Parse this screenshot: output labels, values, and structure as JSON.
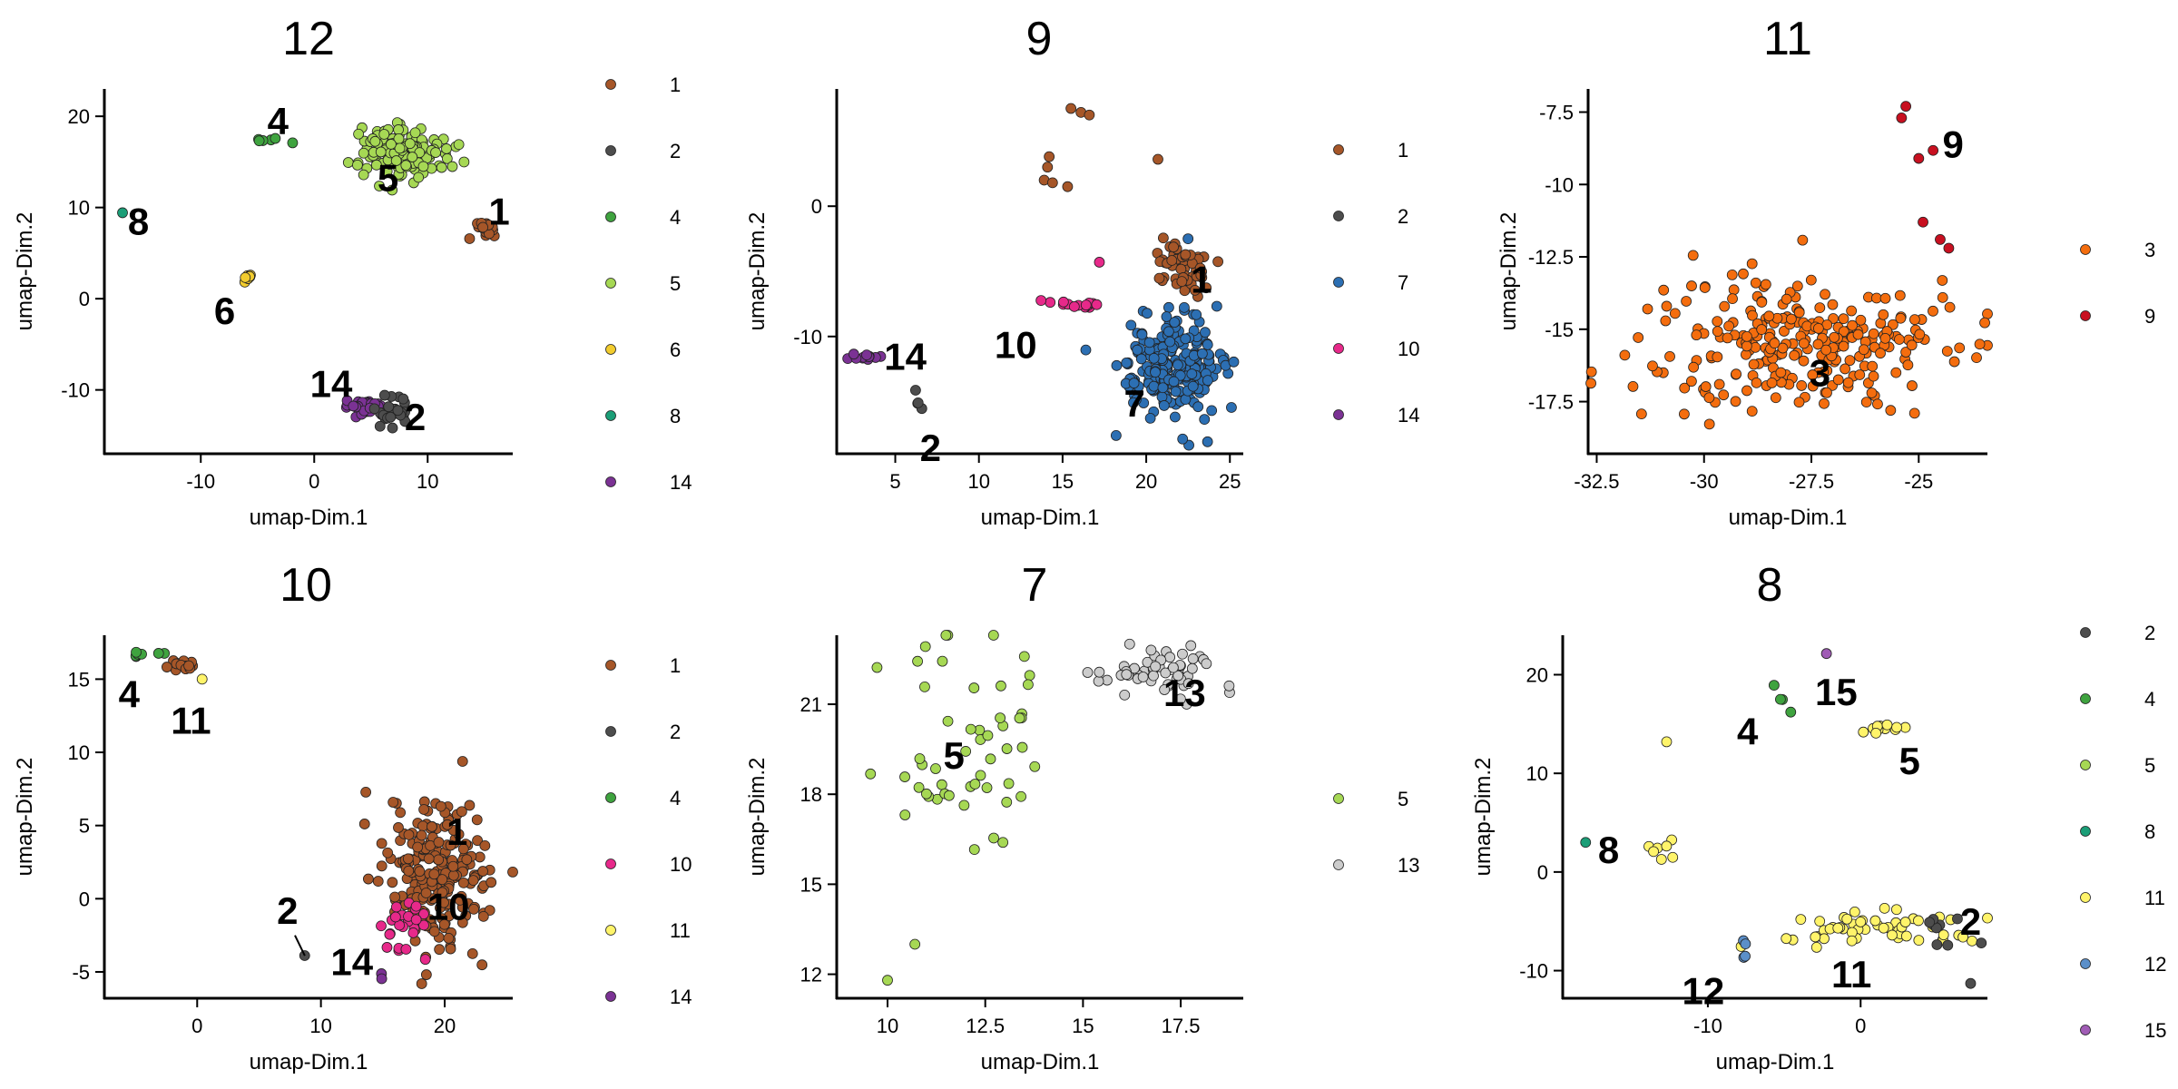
{
  "palette": {
    "1": "#A65628",
    "2": "#4D4D4D",
    "3": "#F46D0E",
    "4": "#3FA33F",
    "5": "#A6D854",
    "6": "#F2CC2E",
    "7": "#2C6FB3",
    "8": "#1B9E77",
    "9": "#C81020",
    "10": "#E7298A",
    "11": "#FFF46A",
    "12": "#5B8FC9",
    "13": "#CCCCCC",
    "14": "#7B3294",
    "15": "#A05CB5"
  },
  "chart_data": [
    {
      "type": "scatter",
      "title": "12",
      "xlabel": "umap-Dim.1",
      "ylabel": "umap-Dim.2",
      "xlim": [
        -18.5,
        17.5
      ],
      "ylim": [
        -17,
        23
      ],
      "xticks": [
        -10,
        0,
        10
      ],
      "yticks": [
        -10,
        0,
        10,
        20
      ],
      "legend": [
        "1",
        "2",
        "4",
        "5",
        "6",
        "8",
        "14"
      ],
      "clusters": [
        {
          "id": "4",
          "center": [
            -5,
            17.3
          ],
          "spread": [
            2.6,
            0.8
          ],
          "n": 6,
          "label": "4",
          "label_pos": [
            -3.2,
            19.5
          ]
        },
        {
          "id": "5",
          "center": [
            8,
            16.2
          ],
          "spread": [
            4.5,
            3.3
          ],
          "n": 160,
          "label": "5",
          "label_pos": [
            6.5,
            13.3
          ]
        },
        {
          "id": "8",
          "center": [
            -17,
            9.4
          ],
          "spread": [
            0.2,
            0.2
          ],
          "n": 1,
          "label": "8",
          "label_pos": [
            -15.5,
            8.5
          ]
        },
        {
          "id": "1",
          "center": [
            15,
            7.5
          ],
          "spread": [
            1.6,
            1.4
          ],
          "n": 14,
          "label": "1",
          "label_pos": [
            16.3,
            9.6
          ]
        },
        {
          "id": "6",
          "center": [
            -5.8,
            2.3
          ],
          "spread": [
            0.4,
            0.4
          ],
          "n": 8,
          "label": "6",
          "label_pos": [
            -7.9,
            -1.3
          ]
        },
        {
          "id": "14",
          "center": [
            4.5,
            -11.8
          ],
          "spread": [
            2.3,
            0.9
          ],
          "n": 30,
          "label": "14",
          "label_pos": [
            1.5,
            -9.3
          ]
        },
        {
          "id": "2",
          "center": [
            7,
            -12.5
          ],
          "spread": [
            1.7,
            2.2
          ],
          "n": 26,
          "label": "2",
          "label_pos": [
            8.9,
            -12.9
          ]
        }
      ]
    },
    {
      "type": "scatter",
      "title": "9",
      "xlabel": "umap-Dim.1",
      "ylabel": "umap-Dim.2",
      "xlim": [
        1.5,
        25.8
      ],
      "ylim": [
        -19,
        9
      ],
      "xticks": [
        5,
        10,
        15,
        20,
        25
      ],
      "yticks": [
        -10,
        0
      ],
      "legend": [
        "1",
        "2",
        "7",
        "10",
        "14"
      ],
      "clusters": [
        {
          "id": "1",
          "center": [
            22,
            -4.7
          ],
          "spread": [
            2,
            2.5
          ],
          "n": 60,
          "label": "1",
          "label_pos": [
            23.3,
            -5.6
          ]
        },
        {
          "id": "7",
          "center": [
            21.5,
            -12.3
          ],
          "spread": [
            3.5,
            4.3
          ],
          "n": 240,
          "label": "7",
          "label_pos": [
            19.3,
            -15.1
          ]
        },
        {
          "id": "10",
          "center": [
            15.5,
            -7.5
          ],
          "spread": [
            2,
            0.5
          ],
          "n": 14,
          "label": "10",
          "label_pos": [
            12.2,
            -10.6
          ]
        },
        {
          "id": "14",
          "center": [
            3.2,
            -11.5
          ],
          "spread": [
            1,
            0.3
          ],
          "n": 12,
          "label": "14",
          "label_pos": [
            5.6,
            -11.5
          ]
        },
        {
          "id": "2",
          "center": [
            6.5,
            -15
          ],
          "spread": [
            0.6,
            1
          ],
          "n": 4,
          "label": "2",
          "label_pos": [
            7.1,
            -18.5
          ]
        }
      ],
      "extra_points": [
        {
          "id": "1",
          "points": [
            [
              15.5,
              7.5
            ],
            [
              16.1,
              7.2
            ],
            [
              16.6,
              7
            ],
            [
              14.1,
              3
            ],
            [
              13.9,
              2
            ],
            [
              14.4,
              1.8
            ],
            [
              14.2,
              3.8
            ],
            [
              15.3,
              1.5
            ],
            [
              20.7,
              3.6
            ]
          ]
        },
        {
          "id": "7",
          "points": [
            [
              18.2,
              -17.6
            ],
            [
              22.5,
              -2.5
            ]
          ]
        },
        {
          "id": "10",
          "points": [
            [
              17.2,
              -4.3
            ]
          ]
        }
      ]
    },
    {
      "type": "scatter",
      "title": "11",
      "xlabel": "umap-Dim.1",
      "ylabel": "umap-Dim.2",
      "xlim": [
        -32.7,
        -23.4
      ],
      "ylim": [
        -19.3,
        -6.7
      ],
      "xticks": [
        -32.5,
        -30,
        -27.5,
        -25
      ],
      "yticks": [
        -7.5,
        -10,
        -12.5,
        -15,
        -17.5
      ],
      "legend": [
        "3",
        "9"
      ],
      "clusters": [
        {
          "id": "9",
          "center": [
            -24.9,
            -9.5
          ],
          "spread": [
            0.3,
            1.6
          ],
          "n": 1,
          "label": "9",
          "label_pos": [
            -24.2,
            -8.6
          ]
        },
        {
          "id": "3",
          "center": [
            -27.8,
            -15.5
          ],
          "spread": [
            4.3,
            2.9
          ],
          "n": 260,
          "label": "3",
          "label_pos": [
            -27.3,
            -16.5
          ]
        }
      ],
      "extra_points": [
        {
          "id": "9",
          "points": [
            [
              -25.3,
              -7.3
            ],
            [
              -25.4,
              -7.7
            ],
            [
              -25,
              -9.1
            ],
            [
              -24.9,
              -11.3
            ],
            [
              -24.5,
              -11.9
            ],
            [
              -24.3,
              -12.2
            ]
          ]
        }
      ]
    },
    {
      "type": "scatter",
      "title": "10",
      "xlabel": "umap-Dim.1",
      "ylabel": "umap-Dim.2",
      "xlim": [
        -7.5,
        25.5
      ],
      "ylim": [
        -6.8,
        18
      ],
      "xticks": [
        0,
        10,
        20
      ],
      "yticks": [
        -5,
        0,
        5,
        10,
        15
      ],
      "legend": [
        "1",
        "2",
        "4",
        "10",
        "11",
        "14"
      ],
      "clusters": [
        {
          "id": "4",
          "center": [
            -4.5,
            16.7
          ],
          "spread": [
            2,
            0.2
          ],
          "n": 8,
          "label": "4",
          "label_pos": [
            -5.5,
            14
          ]
        },
        {
          "id": "1",
          "center": [
            -1.3,
            16
          ],
          "spread": [
            1.5,
            0.5
          ],
          "n": 14,
          "label": "11",
          "label_pos": [
            -0.5,
            12.2
          ]
        },
        {
          "id": "1",
          "center": [
            19.5,
            1.5
          ],
          "spread": [
            5,
            6
          ],
          "n": 230,
          "label": "1",
          "label_pos": [
            21,
            4.6
          ]
        },
        {
          "id": "10",
          "center": [
            17,
            -2.2
          ],
          "spread": [
            2.3,
            2.8
          ],
          "n": 24,
          "label": "10",
          "label_pos": [
            20.3,
            -0.5
          ]
        },
        {
          "id": "14",
          "center": [
            14.8,
            -5.2
          ],
          "spread": [
            0.3,
            0.3
          ],
          "n": 2,
          "label": "14",
          "label_pos": [
            12.5,
            -4.3
          ]
        },
        {
          "id": "2",
          "center": [
            8.7,
            -3.9
          ],
          "spread": [
            0.2,
            0.2
          ],
          "n": 1,
          "label": "2",
          "label_pos": [
            7.3,
            -0.8
          ]
        }
      ],
      "extra_points": [
        {
          "id": "11",
          "points": [
            [
              0.4,
              15
            ]
          ]
        }
      ],
      "leader_line": {
        "from": [
          7.9,
          -2.5
        ],
        "to": [
          8.7,
          -3.9
        ]
      }
    },
    {
      "type": "scatter",
      "title": "7",
      "xlabel": "umap-Dim.1",
      "ylabel": "umap-Dim.2",
      "xlim": [
        8.7,
        19.1
      ],
      "ylim": [
        11.2,
        23.3
      ],
      "xticks": [
        10,
        12.5,
        15,
        17.5
      ],
      "yticks": [
        12,
        15,
        18,
        21
      ],
      "legend": [
        "5",
        "13"
      ],
      "clusters": [
        {
          "id": "13",
          "center": [
            17,
            22.1
          ],
          "spread": [
            2,
            0.9
          ],
          "n": 55,
          "label": "13",
          "label_pos": [
            17.6,
            21.4
          ]
        },
        {
          "id": "5",
          "center": [
            12,
            19.8
          ],
          "spread": [
            2.5,
            4.5
          ],
          "n": 52,
          "label": "5",
          "label_pos": [
            11.7,
            19.3
          ]
        }
      ],
      "extra_points": [
        {
          "id": "5",
          "points": [
            [
              10,
              11.8
            ],
            [
              10.7,
              13
            ]
          ]
        }
      ]
    },
    {
      "type": "scatter",
      "title": "8",
      "xlabel": "umap-Dim.1",
      "ylabel": "umap-Dim.2",
      "xlim": [
        -19.5,
        8.3
      ],
      "ylim": [
        -12.8,
        24
      ],
      "xticks": [
        -10,
        0
      ],
      "yticks": [
        -10,
        0,
        10,
        20
      ],
      "legend": [
        "2",
        "4",
        "5",
        "8",
        "11",
        "12",
        "15"
      ],
      "clusters": [
        {
          "id": "4",
          "center": [
            -5.5,
            17.3
          ],
          "spread": [
            1.4,
            2
          ],
          "n": 4,
          "label": "4",
          "label_pos": [
            -7.4,
            14.3
          ]
        },
        {
          "id": "15",
          "center": [
            -2.2,
            22.3
          ],
          "spread": [
            0.2,
            0.2
          ],
          "n": 1,
          "label": "15",
          "label_pos": [
            -1.6,
            18.3
          ]
        },
        {
          "id": "11",
          "center": [
            1,
            14.7
          ],
          "spread": [
            2.5,
            0.6
          ],
          "n": 12,
          "label": "5",
          "label_pos": [
            3.2,
            11.3
          ]
        },
        {
          "id": "11",
          "center": [
            -13,
            2.7
          ],
          "spread": [
            1,
            1.7
          ],
          "n": 7,
          "label": "8",
          "label_pos": [
            -16.5,
            2.3
          ]
        },
        {
          "id": "11",
          "center": [
            0.5,
            -5.7
          ],
          "spread": [
            7.5,
            2.2
          ],
          "n": 55,
          "label": "11",
          "label_pos": [
            -0.6,
            -10.3
          ]
        },
        {
          "id": "12",
          "center": [
            -7.5,
            -7.8
          ],
          "spread": [
            0.8,
            0.9
          ],
          "n": 4,
          "label": "12",
          "label_pos": [
            -10.3,
            -12
          ]
        },
        {
          "id": "2",
          "center": [
            5.5,
            -6
          ],
          "spread": [
            2.5,
            3.5
          ],
          "n": 8,
          "label": "2",
          "label_pos": [
            7.2,
            -5
          ]
        }
      ],
      "extra_points": [
        {
          "id": "8",
          "points": [
            [
              -18,
              3
            ]
          ]
        },
        {
          "id": "11",
          "points": [
            [
              -12.7,
              13.2
            ],
            [
              6.7,
              -6.6
            ]
          ]
        },
        {
          "id": "2",
          "points": [
            [
              7.2,
              -11.3
            ],
            [
              7.9,
              -7.2
            ]
          ]
        }
      ]
    }
  ]
}
